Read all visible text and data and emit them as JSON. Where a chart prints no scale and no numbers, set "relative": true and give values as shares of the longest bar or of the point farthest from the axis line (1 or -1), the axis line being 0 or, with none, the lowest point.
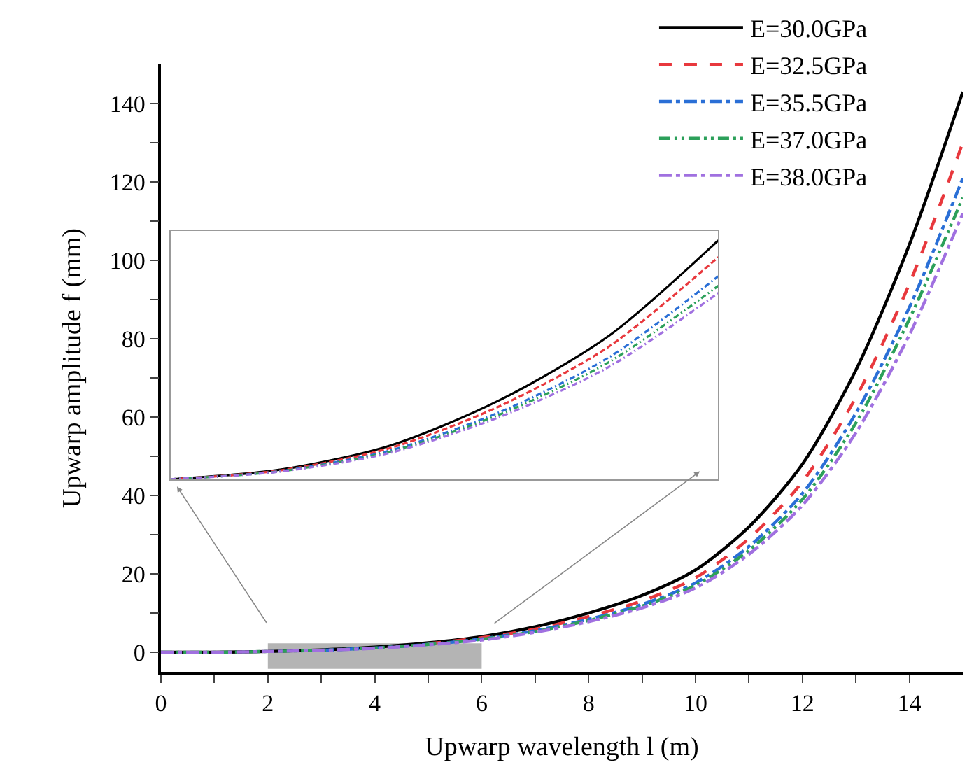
{
  "chart_data": [
    {
      "type": "line",
      "xlabel": "Upwarp wavelength l (m)",
      "ylabel": "Upwarp amplitude f (mm)",
      "x": [
        0,
        1,
        2,
        3,
        4,
        5,
        6,
        7,
        8,
        9,
        10,
        11,
        12,
        13,
        14,
        15
      ],
      "series": [
        {
          "name": "E=30.0GPa",
          "color": "#000000",
          "line_style": "solid",
          "values": [
            0,
            0,
            0.2,
            0.6,
            1.3,
            2.4,
            4.0,
            6.5,
            10,
            14.5,
            21,
            32,
            48,
            72,
            104,
            143
          ]
        },
        {
          "name": "E=32.5GPa",
          "color": "#e8383d",
          "line_style": "dashed",
          "values": [
            null,
            null,
            null,
            null,
            null,
            2.2,
            3.7,
            5.9,
            9.1,
            13.1,
            19,
            29,
            43.5,
            65,
            94,
            130
          ]
        },
        {
          "name": "E=35.5GPa",
          "color": "#2a6fd6",
          "line_style": "dashdot",
          "values": [
            null,
            null,
            null,
            0.5,
            1.1,
            2.0,
            3.4,
            5.5,
            8.4,
            12.2,
            17.7,
            27,
            40.5,
            61,
            88,
            121
          ]
        },
        {
          "name": "E=37.0GPa",
          "color": "#2ca05a",
          "line_style": "dashdotdot",
          "values": [
            0,
            0,
            0.2,
            0.5,
            1.1,
            2.0,
            3.3,
            5.3,
            8.1,
            11.8,
            17.1,
            26,
            39,
            58.5,
            85,
            116
          ]
        },
        {
          "name": "E=38.0GPa",
          "color": "#a070e0",
          "line_style": "dashdot",
          "values": [
            0,
            0,
            0.2,
            0.5,
            1.0,
            1.9,
            3.1,
            5.1,
            7.8,
            11.3,
            16.4,
            25,
            37.5,
            56,
            81,
            112
          ]
        }
      ],
      "xlim": [
        0,
        15
      ],
      "ylim": [
        -5,
        150
      ],
      "xticks": [
        0,
        {
          "value": 1,
          "label": null
        },
        2,
        {
          "value": 3,
          "label": null
        },
        4,
        {
          "value": 5,
          "label": null
        },
        6,
        {
          "value": 7,
          "label": null
        },
        8,
        {
          "value": 9,
          "label": null
        },
        10,
        {
          "value": 11,
          "label": null
        },
        12,
        {
          "value": 13,
          "label": null
        },
        14
      ],
      "yticks": [
        0,
        {
          "value": 10,
          "label": null
        },
        20,
        {
          "value": 30,
          "label": null
        },
        40,
        {
          "value": 50,
          "label": null
        },
        60,
        {
          "value": 70,
          "label": null
        },
        80,
        {
          "value": 90,
          "label": null
        },
        100,
        {
          "value": 110,
          "label": null
        },
        120,
        {
          "value": 130,
          "label": null
        },
        140
      ],
      "bands": [
        {
          "axis": "x",
          "from": 2,
          "to": 6,
          "color": "#b4b4b4"
        }
      ],
      "legend": "top right",
      "grid": false
    },
    {
      "type": "line",
      "relative": true,
      "categories": [
        null,
        null,
        null,
        null,
        null,
        null
      ],
      "series": [
        {
          "color": "#000000",
          "line_style": "solid",
          "values": [
            0,
            0.04,
            0.14,
            0.33,
            0.6,
            1
          ]
        },
        {
          "color": "#e8383d",
          "line_style": "dashed",
          "values": [
            0,
            0.037,
            0.13,
            0.305,
            0.555,
            0.93
          ]
        },
        {
          "color": "#2a6fd6",
          "line_style": "dashdot",
          "values": [
            0,
            0.034,
            0.12,
            0.28,
            0.51,
            0.85
          ]
        },
        {
          "color": "#2ca05a",
          "line_style": "dashdotdot",
          "values": [
            0,
            0.033,
            0.115,
            0.27,
            0.49,
            0.81
          ]
        },
        {
          "color": "#a070e0",
          "line_style": "dashdot",
          "values": [
            0,
            0.032,
            0.11,
            0.26,
            0.47,
            0.78
          ]
        }
      ]
    }
  ]
}
